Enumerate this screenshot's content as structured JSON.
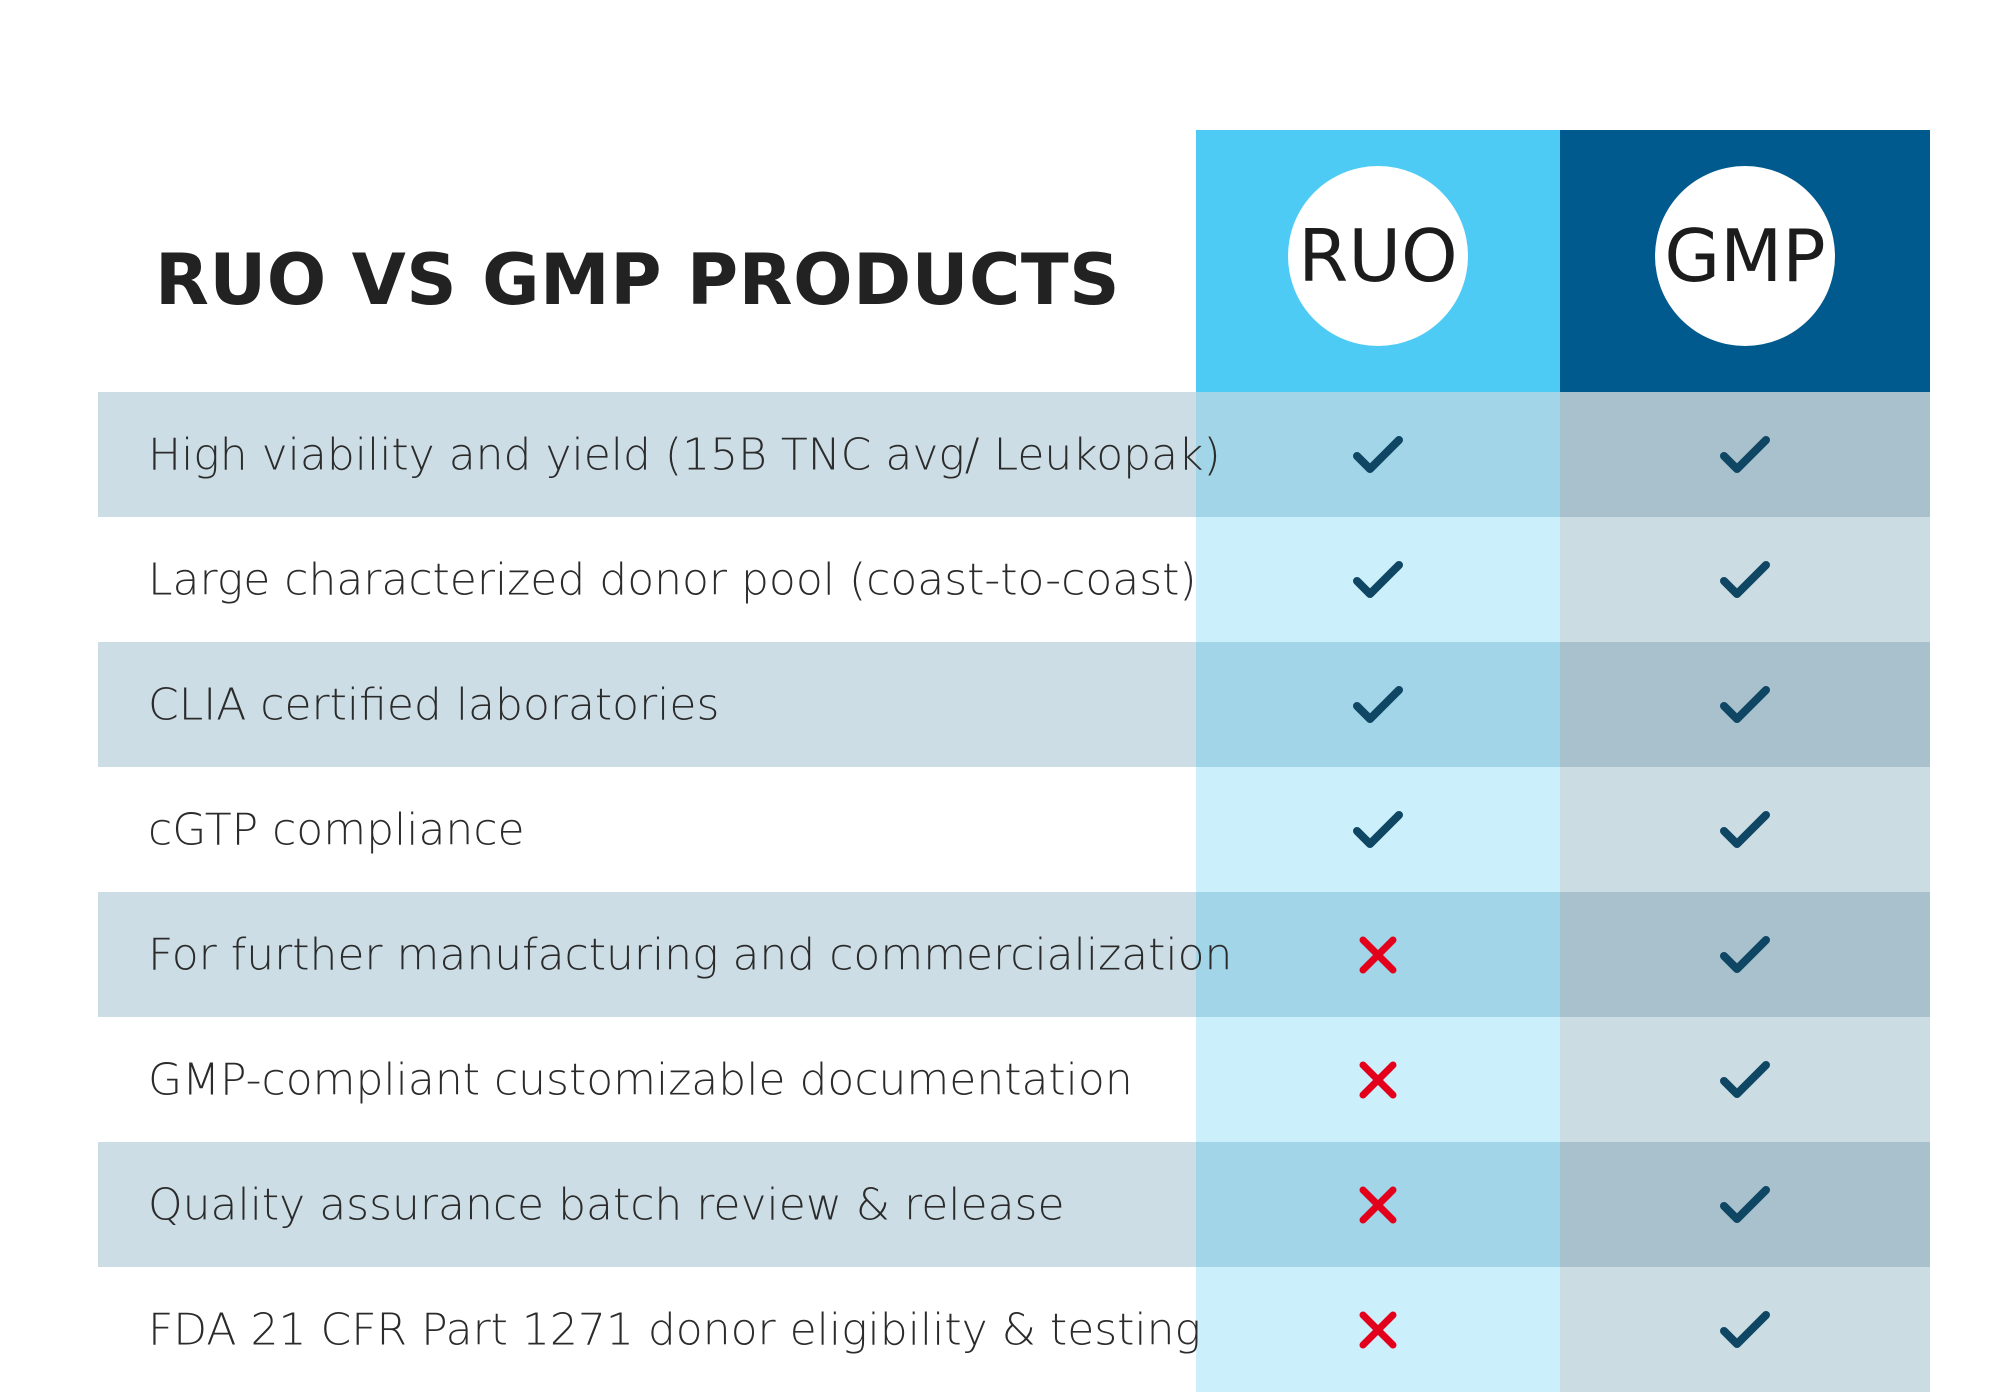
{
  "title": "RUO VS GMP PRODUCTS",
  "columns": {
    "ruo": "RUO",
    "gmp": "GMP"
  },
  "colors": {
    "ruo_header": "#4ecbf4",
    "gmp_header": "#005a8e",
    "check": "#0e4663",
    "cross": "#e3001b"
  },
  "icons": {
    "yes": "check-icon",
    "no": "cross-icon"
  },
  "rows": [
    {
      "label": "High viability and yield (15B TNC avg/ Leukopak)",
      "ruo": "check",
      "gmp": "check"
    },
    {
      "label": "Large characterized donor pool (coast-to-coast)",
      "ruo": "check",
      "gmp": "check"
    },
    {
      "label": "CLIA certified laboratories",
      "ruo": "check",
      "gmp": "check"
    },
    {
      "label": "cGTP compliance",
      "ruo": "check",
      "gmp": "check"
    },
    {
      "label": "For further manufacturing and commercialization",
      "ruo": "cross",
      "gmp": "check"
    },
    {
      "label": "GMP-compliant customizable documentation",
      "ruo": "cross",
      "gmp": "check"
    },
    {
      "label": "Quality assurance batch review & release",
      "ruo": "cross",
      "gmp": "check"
    },
    {
      "label": "FDA 21 CFR Part 1271 donor eligibility & testing",
      "ruo": "cross",
      "gmp": "check"
    }
  ]
}
